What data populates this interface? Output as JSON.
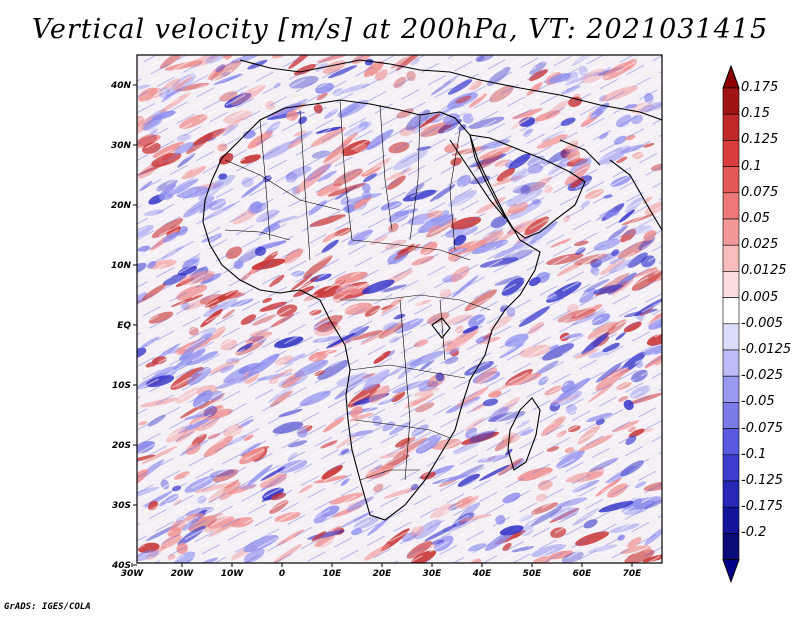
{
  "title": "Vertical velocity [m/s] at 200hPa, VT: 2021031415",
  "credit": "GrADS: IGES/COLA",
  "axes": {
    "lat_ticks": [
      "40N",
      "30N",
      "20N",
      "10N",
      "EQ",
      "10S",
      "20S",
      "30S",
      "40S"
    ],
    "lon_ticks": [
      "30W",
      "20W",
      "10W",
      "0",
      "10E",
      "20E",
      "30E",
      "40E",
      "50E",
      "60E",
      "70E"
    ],
    "lon_range_deg": [
      -30,
      75
    ],
    "lat_range_deg": [
      -40,
      45
    ]
  },
  "colorbar": {
    "labels": [
      "0.175",
      "0.15",
      "0.125",
      "0.1",
      "0.075",
      "0.05",
      "0.025",
      "0.0125",
      "0.005",
      "-0.005",
      "-0.0125",
      "-0.025",
      "-0.05",
      "-0.075",
      "-0.1",
      "-0.125",
      "-0.175",
      "-0.2"
    ],
    "colors": [
      "#a01414",
      "#c02828",
      "#d83c3c",
      "#e45858",
      "#ec7878",
      "#f29a9a",
      "#f7bcbc",
      "#fbdcdc",
      "#ffffff",
      "#dcdcfb",
      "#bcbcf7",
      "#9a9af0",
      "#7a7ae8",
      "#5a5ae0",
      "#3c3cd0",
      "#2828b8",
      "#14149a",
      "#0a0a78"
    ],
    "top_arrow_color": "#8c0000",
    "bottom_arrow_color": "#00008c"
  },
  "field_colors": {
    "positive_strong": "#c83232",
    "positive": "#ef9090",
    "neutral": "#f4f0f6",
    "negative": "#9090ef",
    "negative_strong": "#3232c8",
    "coast": "#000000"
  }
}
